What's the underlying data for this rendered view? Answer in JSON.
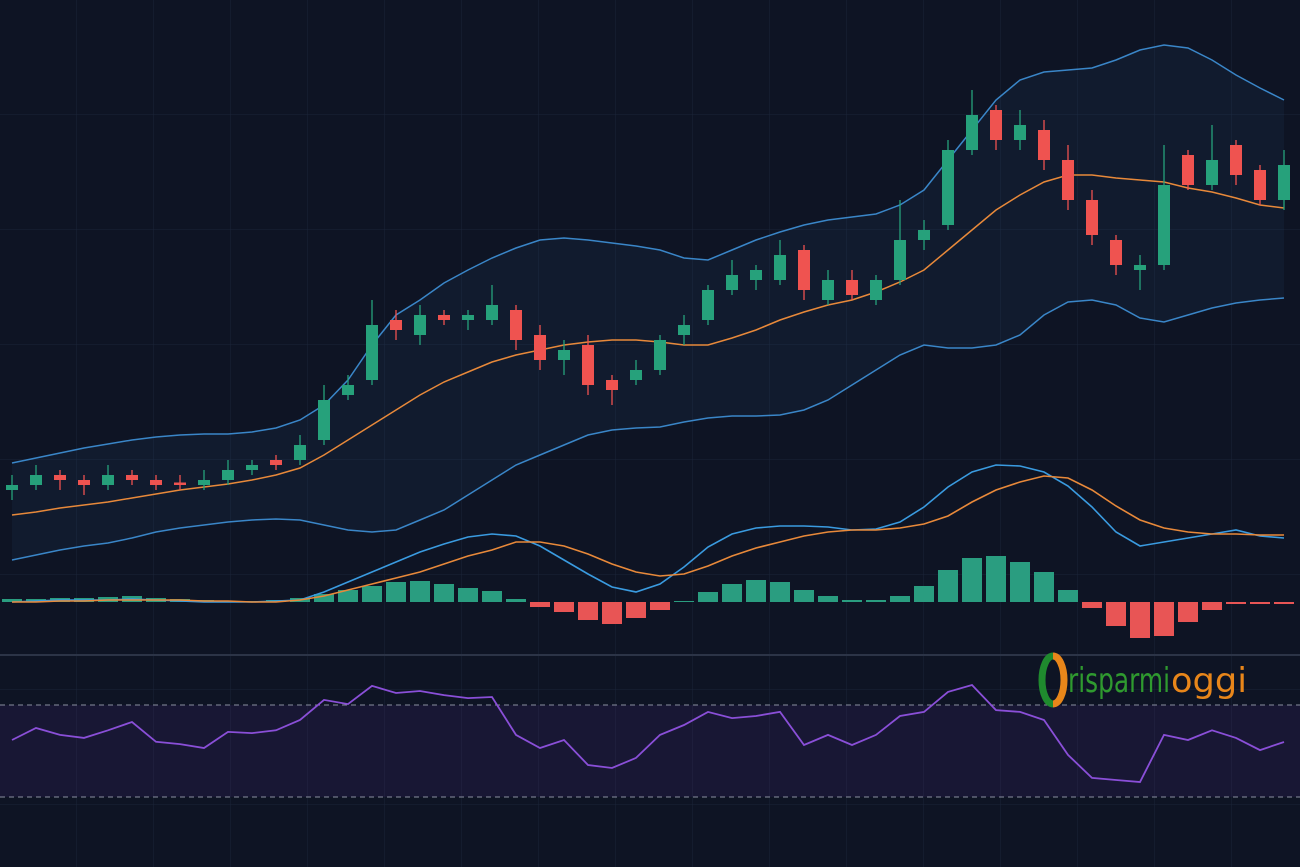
{
  "logo": {
    "parts": [
      "risparmi",
      "oggi"
    ]
  },
  "chart_data": [
    {
      "type": "candlestick",
      "ylim": [
        0,
        120
      ],
      "up_color": "#26a17b",
      "down_color": "#ef5350",
      "open": [
        22,
        23,
        25,
        24,
        23,
        25,
        24,
        23.5,
        23,
        24,
        26,
        28,
        28,
        32,
        41,
        44,
        56,
        53,
        57,
        56,
        56,
        58,
        53,
        48,
        51,
        44,
        44,
        46,
        53,
        56,
        62,
        64,
        64,
        70,
        60,
        64,
        60,
        64,
        72,
        75,
        90,
        98,
        92,
        94,
        88,
        80,
        72,
        66,
        67,
        89,
        83,
        91,
        86,
        80
      ],
      "high": [
        25,
        27,
        26,
        25,
        27,
        26,
        25,
        25,
        26,
        28,
        28,
        29,
        33,
        43,
        45,
        60,
        58,
        59,
        58,
        58,
        63,
        59,
        55,
        52,
        53,
        45,
        48,
        53,
        57,
        63,
        68,
        67,
        72,
        71,
        66,
        66,
        65,
        80,
        76,
        92,
        102,
        99,
        98,
        96,
        91,
        82,
        73,
        69,
        91,
        90,
        95,
        92,
        87,
        90
      ],
      "low": [
        20,
        22,
        22,
        21,
        22,
        23,
        22,
        22,
        22,
        23,
        25,
        26,
        27,
        31,
        40,
        43,
        52,
        51,
        55,
        54,
        55,
        50,
        46,
        45,
        41,
        39,
        43,
        45,
        51,
        55,
        61,
        62,
        63,
        60,
        59,
        60,
        59,
        63,
        70,
        74,
        89,
        90,
        90,
        86,
        78,
        71,
        65,
        62,
        66,
        82,
        82,
        83,
        79,
        78
      ],
      "close": [
        23,
        25,
        24,
        23,
        25,
        24,
        23,
        23,
        24,
        26,
        27,
        27,
        31,
        40,
        43,
        55,
        54,
        57,
        56,
        57,
        59,
        52,
        48,
        50,
        43,
        42,
        46,
        52,
        55,
        62,
        65,
        66,
        69,
        62,
        64,
        61,
        64,
        72,
        74,
        90,
        97,
        92,
        95,
        88,
        80,
        73,
        67,
        67,
        83,
        83,
        88,
        85,
        80,
        87
      ],
      "overlays": [
        {
          "color": "#3a86c8",
          "values": [
            27.4,
            28.4,
            29.4,
            30.4,
            31.2,
            32,
            32.6,
            33,
            33.2,
            33.2,
            33.6,
            34.4,
            36,
            39,
            44,
            51,
            57,
            60,
            63.4,
            66,
            68.4,
            70.4,
            72,
            72.4,
            72,
            71.4,
            70.8,
            70,
            68.4,
            68,
            70,
            72,
            73.6,
            75,
            76,
            76.6,
            77.2,
            79,
            82,
            88,
            94,
            100,
            104,
            105.6,
            106,
            106.4,
            108,
            110,
            111,
            110.4,
            108,
            105,
            102.4,
            100
          ]
        },
        {
          "color": "#e8893a",
          "values": [
            17,
            17.6,
            18.4,
            19,
            19.6,
            20.4,
            21.2,
            22,
            22.6,
            23.2,
            24,
            25,
            26.4,
            29,
            32,
            35,
            38,
            41,
            43.6,
            45.6,
            47.6,
            49,
            50,
            51,
            51.6,
            52,
            52,
            51.6,
            51,
            51,
            52.4,
            54,
            56,
            57.6,
            59,
            60,
            61.6,
            63.6,
            66,
            70,
            74,
            78,
            81,
            83.6,
            85,
            85,
            84.4,
            84,
            83.6,
            82.4,
            81.6,
            80.4,
            79,
            78.4
          ]
        },
        {
          "color": "#3a86c8",
          "values": [
            8,
            9,
            10,
            10.8,
            11.4,
            12.4,
            13.6,
            14.4,
            15,
            15.6,
            16,
            16.2,
            16,
            15,
            14,
            13.6,
            14,
            16,
            18,
            21,
            24,
            27,
            29,
            31,
            33,
            34,
            34.4,
            34.6,
            35.6,
            36.4,
            36.8,
            36.8,
            37,
            38,
            40,
            43,
            46,
            49,
            51,
            50.4,
            50.4,
            51,
            53,
            57,
            59.6,
            60,
            59,
            56.4,
            55.6,
            57,
            58.4,
            59.4,
            60,
            60.4
          ]
        }
      ]
    },
    {
      "type": "macd",
      "ylim": [
        -8,
        16
      ],
      "up_color": "#2a9d80",
      "down_color": "#e85555",
      "histogram": [
        0.3,
        0.3,
        0.4,
        0.4,
        0.5,
        0.6,
        0.4,
        0.3,
        0.2,
        0.1,
        0.1,
        0.2,
        0.4,
        0.8,
        1.2,
        1.6,
        2,
        2.1,
        1.8,
        1.4,
        1.1,
        0.3,
        -0.5,
        -1,
        -1.8,
        -2.2,
        -1.6,
        -0.8,
        0.1,
        1,
        1.8,
        2.2,
        2,
        1.2,
        0.6,
        0.2,
        0.2,
        0.6,
        1.6,
        3.2,
        4.4,
        4.6,
        4,
        3,
        1.2,
        -0.6,
        -2.4,
        -3.6,
        -3.4,
        -2,
        -0.8,
        -0.2,
        -0.2,
        -0.2
      ],
      "lines": [
        {
          "color": "#3a9be0",
          "values": [
            0,
            0.1,
            0.2,
            0.2,
            0.2,
            0.3,
            0.2,
            0.1,
            0,
            0,
            0,
            0.1,
            0.2,
            1,
            2,
            3,
            4,
            5,
            5.8,
            6.5,
            6.8,
            6.6,
            5.6,
            4.2,
            2.8,
            1.5,
            1,
            1.8,
            3.5,
            5.5,
            6.8,
            7.4,
            7.6,
            7.6,
            7.5,
            7.2,
            7.3,
            8,
            9.5,
            11.5,
            13,
            13.7,
            13.6,
            13,
            11.6,
            9.5,
            7,
            5.6,
            6,
            6.4,
            6.8,
            7.2,
            6.6,
            6.4
          ]
        },
        {
          "color": "#e8893a",
          "values": [
            0,
            0,
            0.1,
            0.1,
            0.2,
            0.2,
            0.2,
            0.2,
            0.1,
            0.1,
            0,
            0,
            0.2,
            0.6,
            1.2,
            1.8,
            2.4,
            3,
            3.8,
            4.6,
            5.2,
            6,
            6,
            5.6,
            4.8,
            3.8,
            3,
            2.6,
            2.8,
            3.6,
            4.6,
            5.4,
            6,
            6.6,
            7,
            7.2,
            7.2,
            7.4,
            7.8,
            8.6,
            10,
            11.2,
            12,
            12.6,
            12.4,
            11.2,
            9.6,
            8.2,
            7.4,
            7,
            6.8,
            6.8,
            6.7,
            6.7
          ]
        }
      ]
    },
    {
      "type": "rsi",
      "ylim": [
        0,
        100
      ],
      "levels": [
        30,
        70
      ],
      "color": "#8a4fd8",
      "values": [
        54.8,
        60,
        57,
        55.7,
        59,
        62.6,
        54,
        53,
        51.3,
        58.3,
        57.8,
        59,
        63.5,
        72.2,
        70.4,
        78.3,
        75.2,
        76.1,
        74.3,
        73,
        73.5,
        57,
        51.3,
        54.8,
        43.9,
        42.6,
        47,
        57,
        61.3,
        67,
        64.3,
        65.2,
        67,
        52.6,
        57,
        52.6,
        57,
        65.2,
        67,
        75.7,
        78.7,
        67.8,
        67,
        63.5,
        48.3,
        38.3,
        37.4,
        36.5,
        57,
        54.8,
        59,
        55.7,
        50.4,
        53.9
      ]
    }
  ]
}
